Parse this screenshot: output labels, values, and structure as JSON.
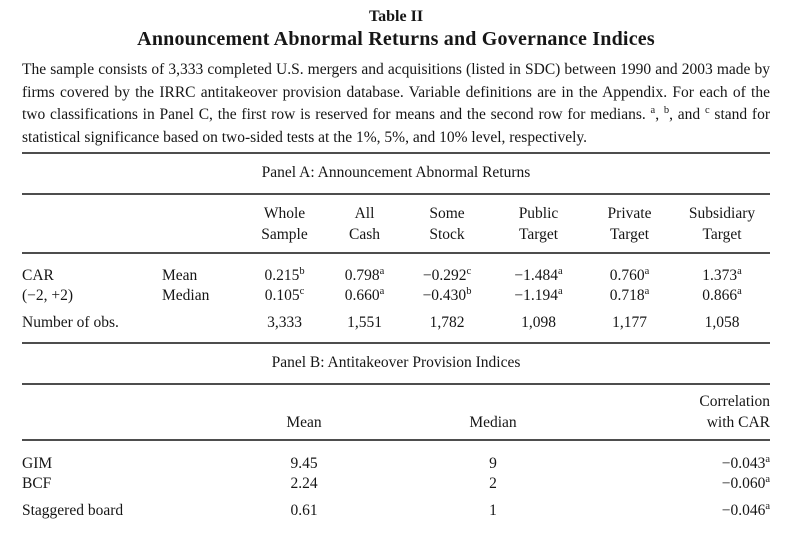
{
  "header": {
    "table_number": "Table II",
    "title": "Announcement Abnormal Returns and Governance Indices"
  },
  "description": {
    "part1": "The sample consists of 3,333 completed U.S. mergers and acquisitions (listed in SDC) between 1990 and 2003 made by firms covered by the IRRC antitakeover provision database. Variable definitions are in the Appendix. For each of the two classifications in Panel C, the first row is reserved for means and the second row for medians. ",
    "sup_a": "a",
    "sep1": ", ",
    "sup_b": "b",
    "sep2": ", and ",
    "sup_c": "c",
    "part2": " stand for statistical significance based on two-sided tests at the 1%, 5%, and 10% level, respectively."
  },
  "panelA": {
    "title": "Panel A: Announcement Abnormal Returns",
    "headers": [
      {
        "line1": "Whole",
        "line2": "Sample"
      },
      {
        "line1": "All",
        "line2": "Cash"
      },
      {
        "line1": "Some",
        "line2": "Stock"
      },
      {
        "line1": "Public",
        "line2": "Target"
      },
      {
        "line1": "Private",
        "line2": "Target"
      },
      {
        "line1": "Subsidiary",
        "line2": "Target"
      }
    ],
    "rows": [
      {
        "label": "CAR",
        "stat": "Mean",
        "cells": [
          {
            "v": "0.215",
            "s": "b"
          },
          {
            "v": "0.798",
            "s": "a"
          },
          {
            "v": "−0.292",
            "s": "c"
          },
          {
            "v": "−1.484",
            "s": "a"
          },
          {
            "v": "0.760",
            "s": "a"
          },
          {
            "v": "1.373",
            "s": "a"
          }
        ]
      },
      {
        "label": "(−2, +2)",
        "stat": "Median",
        "cells": [
          {
            "v": "0.105",
            "s": "c"
          },
          {
            "v": "0.660",
            "s": "a"
          },
          {
            "v": "−0.430",
            "s": "b"
          },
          {
            "v": "−1.194",
            "s": "a"
          },
          {
            "v": "0.718",
            "s": "a"
          },
          {
            "v": "0.866",
            "s": "a"
          }
        ]
      },
      {
        "label": "Number of obs.",
        "stat": "",
        "cells": [
          {
            "v": "3,333",
            "s": ""
          },
          {
            "v": "1,551",
            "s": ""
          },
          {
            "v": "1,782",
            "s": ""
          },
          {
            "v": "1,098",
            "s": ""
          },
          {
            "v": "1,177",
            "s": ""
          },
          {
            "v": "1,058",
            "s": ""
          }
        ]
      }
    ]
  },
  "panelB": {
    "title": "Panel B: Antitakeover Provision Indices",
    "headers": {
      "mean": "Mean",
      "median": "Median",
      "corr_line1": "Correlation",
      "corr_line2": "with CAR"
    },
    "rows": [
      {
        "label": "GIM",
        "mean": "9.45",
        "median": "9",
        "corr": "−0.043",
        "corr_sup": "a"
      },
      {
        "label": "BCF",
        "mean": "2.24",
        "median": "2",
        "corr": "−0.060",
        "corr_sup": "a"
      },
      {
        "label": "Staggered board",
        "mean": "0.61",
        "median": "1",
        "corr": "−0.046",
        "corr_sup": "a"
      }
    ]
  }
}
